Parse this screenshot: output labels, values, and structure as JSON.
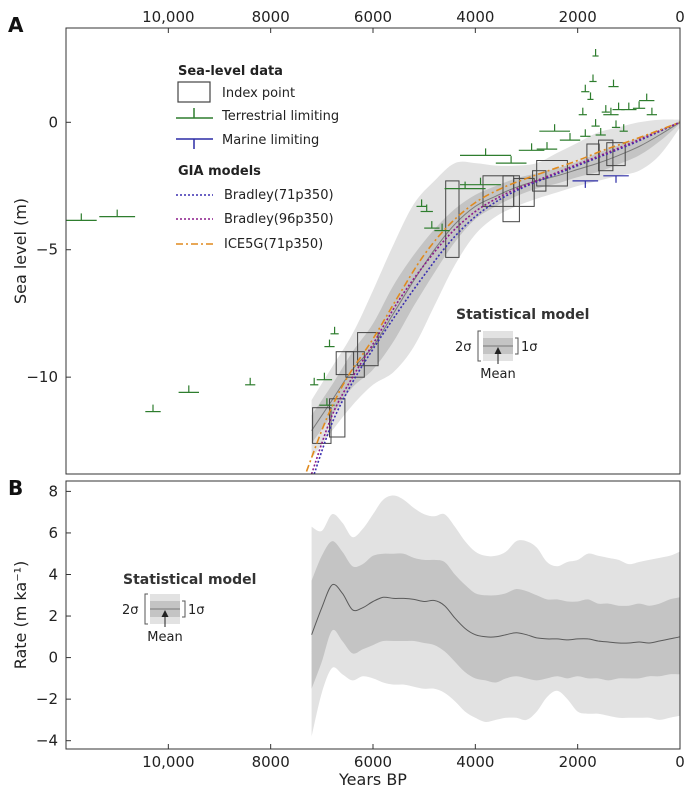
{
  "figure": {
    "panel_a_label": "A",
    "panel_b_label": "B",
    "x_axis_label": "Years BP",
    "x_ticks_top": [
      "10,000",
      "8000",
      "6000",
      "4000",
      "2000",
      "0"
    ],
    "x_ticks_bottom": [
      "10,000",
      "8000",
      "6000",
      "4000",
      "2000",
      "0"
    ]
  },
  "legend_a": {
    "data_heading": "Sea-level data",
    "index_point": "Index point",
    "terrestrial": "Terrestrial limiting",
    "marine": "Marine limiting",
    "gia_heading": "GIA models",
    "model1": "Bradley(71p350)",
    "model2": "Bradley(96p350)",
    "model3": "ICE5G(71p350)",
    "stat_heading": "Statistical model",
    "two_sigma": "2σ",
    "one_sigma": "1σ",
    "mean": "Mean"
  },
  "legend_b": {
    "stat_heading": "Statistical model",
    "two_sigma": "2σ",
    "one_sigma": "1σ",
    "mean": "Mean"
  },
  "colors": {
    "band_2sigma": "#e2e2e2",
    "band_1sigma": "#c4c4c4",
    "mean_line": "#7a7a7a",
    "terrestrial": "#2e7d2e",
    "marine": "#2c2ca6",
    "bradley71": "#3a2fb0",
    "bradley96": "#8a1a8a",
    "ice5g": "#e08a1e",
    "index_box": "#444444"
  },
  "chart_data": [
    {
      "type": "line",
      "panel": "A",
      "xlabel": "Years BP",
      "ylabel": "Sea level (m)",
      "xlim": [
        12000,
        0
      ],
      "ylim": [
        -13.8,
        3.7
      ],
      "x_ticks": [
        10000,
        8000,
        6000,
        4000,
        2000,
        0
      ],
      "y_ticks": [
        0,
        -5,
        -10
      ],
      "y_tick_labels": [
        "0",
        "−5",
        "−10"
      ],
      "statistical_model": {
        "x": [
          7200,
          6800,
          6400,
          6000,
          5600,
          5200,
          4800,
          4400,
          4000,
          3600,
          3200,
          2800,
          2400,
          2000,
          1600,
          1200,
          800,
          400,
          0
        ],
        "mean": [
          -12.1,
          -10.9,
          -9.7,
          -8.8,
          -7.5,
          -6.2,
          -5.0,
          -4.0,
          -3.3,
          -2.9,
          -2.55,
          -2.3,
          -2.1,
          -1.85,
          -1.6,
          -1.3,
          -0.95,
          -0.5,
          0.0
        ],
        "lower_1sigma": [
          -12.6,
          -11.5,
          -10.4,
          -9.7,
          -8.6,
          -7.2,
          -5.9,
          -4.7,
          -3.8,
          -3.3,
          -2.9,
          -2.6,
          -2.4,
          -2.15,
          -1.95,
          -1.65,
          -1.3,
          -0.75,
          -0.05
        ],
        "upper_1sigma": [
          -11.5,
          -10.3,
          -9.0,
          -7.9,
          -6.4,
          -5.2,
          -4.2,
          -3.4,
          -2.85,
          -2.5,
          -2.2,
          -2.0,
          -1.8,
          -1.55,
          -1.2,
          -0.9,
          -0.6,
          -0.3,
          0.05
        ],
        "lower_2sigma": [
          -13.2,
          -12.1,
          -11.1,
          -10.3,
          -9.8,
          -8.8,
          -7.2,
          -5.6,
          -4.4,
          -3.7,
          -3.3,
          -3.0,
          -2.75,
          -2.5,
          -2.3,
          -2.1,
          -1.9,
          -1.3,
          -0.2
        ],
        "upper_2sigma": [
          -10.9,
          -9.6,
          -8.3,
          -6.6,
          -4.8,
          -3.2,
          -2.3,
          -1.6,
          -1.6,
          -1.7,
          -1.7,
          -1.6,
          -1.2,
          -0.8,
          -0.4,
          -0.2,
          0.0,
          0.1,
          0.1
        ]
      },
      "series": [
        {
          "name": "Bradley(71p350)",
          "style": "dotted",
          "x": [
            7150,
            6800,
            6400,
            6000,
            5500,
            5000,
            4500,
            4000,
            3500,
            3000,
            2500,
            2000,
            1500,
            1000,
            500,
            0
          ],
          "y": [
            -13.8,
            -11.8,
            -10.2,
            -8.9,
            -7.4,
            -6.0,
            -4.7,
            -3.7,
            -3.0,
            -2.5,
            -2.1,
            -1.7,
            -1.3,
            -0.9,
            -0.45,
            0.0
          ]
        },
        {
          "name": "Bradley(96p350)",
          "style": "dotted",
          "x": [
            7200,
            6800,
            6400,
            6000,
            5500,
            5000,
            4500,
            4000,
            3500,
            3000,
            2500,
            2000,
            1500,
            1000,
            500,
            0
          ],
          "y": [
            -13.8,
            -11.5,
            -10.0,
            -8.7,
            -7.0,
            -5.6,
            -4.4,
            -3.5,
            -2.9,
            -2.45,
            -2.05,
            -1.65,
            -1.25,
            -0.85,
            -0.42,
            0.0
          ]
        },
        {
          "name": "ICE5G(71p350)",
          "style": "dashdot",
          "x": [
            7300,
            6900,
            6500,
            6000,
            5500,
            5000,
            4500,
            4000,
            3500,
            3000,
            2500,
            2000,
            1500,
            1000,
            500,
            0
          ],
          "y": [
            -13.7,
            -11.6,
            -10.0,
            -8.5,
            -6.8,
            -5.2,
            -4.0,
            -3.15,
            -2.6,
            -2.2,
            -1.85,
            -1.5,
            -1.1,
            -0.75,
            -0.38,
            0.0
          ]
        }
      ],
      "index_points": [
        {
          "age": 7000,
          "age_err": 180,
          "y": -11.9,
          "y_err": 0.7
        },
        {
          "age": 6700,
          "age_err": 150,
          "y": -11.6,
          "y_err": 0.75
        },
        {
          "age": 6550,
          "age_err": 170,
          "y": -9.45,
          "y_err": 0.45
        },
        {
          "age": 6350,
          "age_err": 180,
          "y": -9.5,
          "y_err": 0.5
        },
        {
          "age": 6100,
          "age_err": 200,
          "y": -8.9,
          "y_err": 0.65
        },
        {
          "age": 4450,
          "age_err": 130,
          "y": -3.8,
          "y_err": 1.5
        },
        {
          "age": 3550,
          "age_err": 300,
          "y": -2.7,
          "y_err": 0.6
        },
        {
          "age": 3300,
          "age_err": 160,
          "y": -3.0,
          "y_err": 0.9
        },
        {
          "age": 3050,
          "age_err": 200,
          "y": -2.75,
          "y_err": 0.55
        },
        {
          "age": 2750,
          "age_err": 130,
          "y": -2.3,
          "y_err": 0.4
        },
        {
          "age": 2500,
          "age_err": 300,
          "y": -2.0,
          "y_err": 0.5
        },
        {
          "age": 1700,
          "age_err": 120,
          "y": -1.45,
          "y_err": 0.6
        },
        {
          "age": 1450,
          "age_err": 140,
          "y": -1.3,
          "y_err": 0.6
        },
        {
          "age": 1250,
          "age_err": 180,
          "y": -1.25,
          "y_err": 0.45
        }
      ],
      "terrestrial_limiting": [
        {
          "age": 11700,
          "age_err": 300,
          "y": -3.85
        },
        {
          "age": 11000,
          "age_err": 350,
          "y": -3.7
        },
        {
          "age": 10300,
          "age_err": 150,
          "y": -11.35
        },
        {
          "age": 9600,
          "age_err": 200,
          "y": -10.6
        },
        {
          "age": 8400,
          "age_err": 100,
          "y": -10.3
        },
        {
          "age": 7150,
          "age_err": 80,
          "y": -10.3
        },
        {
          "age": 6950,
          "age_err": 150,
          "y": -10.1
        },
        {
          "age": 6850,
          "age_err": 100,
          "y": -8.8
        },
        {
          "age": 6750,
          "age_err": 80,
          "y": -8.3
        },
        {
          "age": 6900,
          "age_err": 150,
          "y": -11.1
        },
        {
          "age": 5050,
          "age_err": 100,
          "y": -3.3
        },
        {
          "age": 4950,
          "age_err": 120,
          "y": -3.5
        },
        {
          "age": 4850,
          "age_err": 150,
          "y": -4.15
        },
        {
          "age": 4650,
          "age_err": 150,
          "y": -4.25
        },
        {
          "age": 4200,
          "age_err": 400,
          "y": -2.6
        },
        {
          "age": 3900,
          "age_err": 400,
          "y": -2.45
        },
        {
          "age": 3800,
          "age_err": 500,
          "y": -1.3
        },
        {
          "age": 3300,
          "age_err": 300,
          "y": -1.6
        },
        {
          "age": 2900,
          "age_err": 250,
          "y": -1.1
        },
        {
          "age": 2600,
          "age_err": 200,
          "y": -1.05
        },
        {
          "age": 2450,
          "age_err": 300,
          "y": -0.35
        },
        {
          "age": 2150,
          "age_err": 200,
          "y": -0.7
        },
        {
          "age": 1850,
          "age_err": 80,
          "y": 1.2
        },
        {
          "age": 1750,
          "age_err": 60,
          "y": 0.9
        },
        {
          "age": 1700,
          "age_err": 70,
          "y": 1.6
        },
        {
          "age": 1650,
          "age_err": 60,
          "y": 2.6
        },
        {
          "age": 1450,
          "age_err": 80,
          "y": 0.4
        },
        {
          "age": 1350,
          "age_err": 150,
          "y": 0.3
        },
        {
          "age": 1300,
          "age_err": 100,
          "y": 1.4
        },
        {
          "age": 1200,
          "age_err": 120,
          "y": 0.5
        },
        {
          "age": 1000,
          "age_err": 150,
          "y": 0.5
        },
        {
          "age": 800,
          "age_err": 120,
          "y": 0.55
        },
        {
          "age": 650,
          "age_err": 150,
          "y": 0.85
        },
        {
          "age": 550,
          "age_err": 100,
          "y": 0.3
        },
        {
          "age": 1900,
          "age_err": 80,
          "y": 0.3
        },
        {
          "age": 1850,
          "age_err": 100,
          "y": -0.55
        },
        {
          "age": 1650,
          "age_err": 80,
          "y": -0.15
        },
        {
          "age": 1550,
          "age_err": 100,
          "y": -0.5
        },
        {
          "age": 1250,
          "age_err": 80,
          "y": -0.2
        },
        {
          "age": 1100,
          "age_err": 80,
          "y": -0.35
        }
      ],
      "marine_limiting": [
        {
          "age": 1850,
          "age_err": 250,
          "y": -2.3
        },
        {
          "age": 1250,
          "age_err": 250,
          "y": -2.1
        }
      ]
    },
    {
      "type": "area",
      "panel": "B",
      "xlabel": "Years BP",
      "ylabel": "Rate (m ka⁻¹)",
      "xlim": [
        12000,
        0
      ],
      "ylim": [
        -4.4,
        8.5
      ],
      "x_ticks": [
        10000,
        8000,
        6000,
        4000,
        2000,
        0
      ],
      "y_ticks": [
        8,
        6,
        4,
        2,
        0,
        -2,
        -4
      ],
      "y_tick_labels": [
        "8",
        "6",
        "4",
        "2",
        "0",
        "−2",
        "−4"
      ],
      "x": [
        7200,
        7000,
        6800,
        6600,
        6400,
        6200,
        6000,
        5800,
        5600,
        5400,
        5200,
        5000,
        4800,
        4600,
        4400,
        4200,
        4000,
        3800,
        3600,
        3400,
        3200,
        3000,
        2800,
        2600,
        2400,
        2200,
        2000,
        1800,
        1600,
        1400,
        1200,
        1000,
        800,
        600,
        400,
        200,
        0
      ],
      "mean": [
        1.1,
        2.4,
        3.5,
        3.1,
        2.3,
        2.4,
        2.7,
        2.9,
        2.85,
        2.85,
        2.8,
        2.7,
        2.75,
        2.5,
        1.9,
        1.4,
        1.1,
        1.0,
        1.0,
        1.1,
        1.2,
        1.1,
        0.95,
        0.9,
        0.9,
        0.85,
        0.9,
        0.9,
        0.8,
        0.75,
        0.7,
        0.7,
        0.75,
        0.7,
        0.8,
        0.9,
        1.0
      ],
      "lower_1sigma": [
        -1.5,
        -0.2,
        1.3,
        0.8,
        0.2,
        0.4,
        0.6,
        0.8,
        0.8,
        0.8,
        0.8,
        0.7,
        0.6,
        0.3,
        -0.2,
        -0.7,
        -1.0,
        -1.1,
        -1.2,
        -1.0,
        -0.9,
        -1.0,
        -1.1,
        -1.0,
        -0.9,
        -1.0,
        -0.9,
        -1.0,
        -1.0,
        -1.1,
        -1.0,
        -1.0,
        -1.0,
        -0.9,
        -0.9,
        -0.8,
        -0.8
      ],
      "upper_1sigma": [
        3.7,
        4.9,
        5.6,
        5.1,
        4.4,
        4.5,
        4.9,
        5.0,
        5.0,
        5.0,
        4.8,
        4.7,
        4.7,
        4.6,
        4.0,
        3.5,
        3.1,
        3.0,
        3.0,
        3.1,
        3.3,
        3.2,
        3.0,
        2.8,
        2.8,
        2.7,
        2.7,
        2.8,
        2.6,
        2.6,
        2.5,
        2.5,
        2.6,
        2.5,
        2.6,
        2.8,
        2.9
      ],
      "lower_2sigma": [
        -3.8,
        -1.7,
        -0.5,
        -0.8,
        -1.1,
        -0.9,
        -1.0,
        -1.2,
        -1.3,
        -1.3,
        -1.4,
        -1.5,
        -1.5,
        -1.7,
        -2.1,
        -2.6,
        -2.9,
        -3.1,
        -3.0,
        -2.9,
        -2.9,
        -3.0,
        -2.6,
        -1.9,
        -1.6,
        -2.0,
        -2.6,
        -2.7,
        -2.7,
        -2.8,
        -2.9,
        -2.9,
        -2.9,
        -2.9,
        -3.0,
        -2.9,
        -2.8
      ],
      "upper_2sigma": [
        6.3,
        6.1,
        6.9,
        6.5,
        5.8,
        6.2,
        6.9,
        7.6,
        7.8,
        7.6,
        7.2,
        6.9,
        6.8,
        6.9,
        6.3,
        5.6,
        5.1,
        4.9,
        4.9,
        5.1,
        5.6,
        5.6,
        5.3,
        4.6,
        4.4,
        4.6,
        4.7,
        5.0,
        4.9,
        4.8,
        4.7,
        4.5,
        4.6,
        4.7,
        4.8,
        4.9,
        5.1
      ]
    }
  ]
}
